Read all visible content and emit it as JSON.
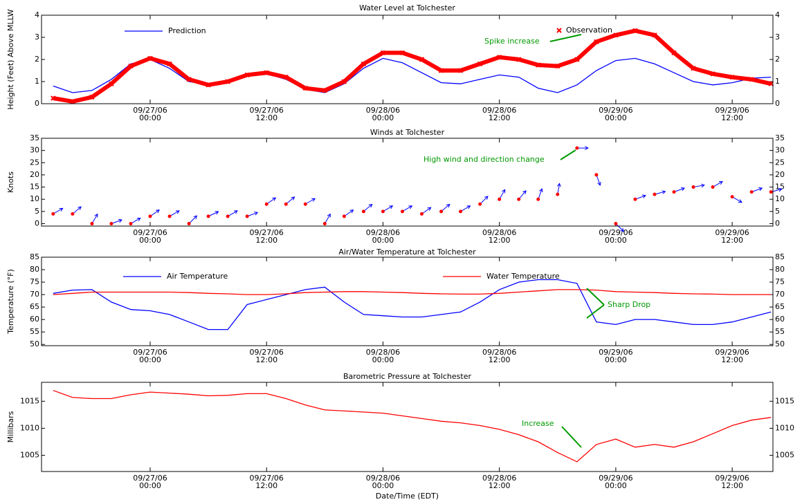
{
  "chart_data": [
    {
      "type": "line",
      "title": "Water Level at Tolchester",
      "ylabel": "Height (Feet) Above MLLW",
      "xlim": [
        -11.2,
        64.2
      ],
      "ylim": [
        0,
        4
      ],
      "yticks": [
        0,
        1,
        2,
        3,
        4
      ],
      "xticks": [
        {
          "value": 0,
          "label": [
            "09/27/06",
            "00:00"
          ]
        },
        {
          "value": 12,
          "label": [
            "09/27/06",
            "12:00"
          ]
        },
        {
          "value": 24,
          "label": [
            "09/28/06",
            "00:00"
          ]
        },
        {
          "value": 36,
          "label": [
            "09/28/06",
            "12:00"
          ]
        },
        {
          "value": 48,
          "label": [
            "09/29/06",
            "00:00"
          ]
        },
        {
          "value": 60,
          "label": [
            "09/29/06",
            "12:00"
          ]
        }
      ],
      "x": [
        -10,
        -8,
        -6,
        -4,
        -2,
        0,
        2,
        4,
        6,
        8,
        10,
        12,
        14,
        16,
        18,
        20,
        22,
        24,
        26,
        28,
        30,
        32,
        34,
        36,
        38,
        40,
        42,
        44,
        46,
        48,
        50,
        52,
        54,
        56,
        58,
        60,
        62,
        64
      ],
      "series": [
        {
          "name": "Prediction",
          "color": "#0000ff",
          "marker": "none",
          "values": [
            0.8,
            0.5,
            0.6,
            1.1,
            1.8,
            2.0,
            1.6,
            1.0,
            0.85,
            1.05,
            1.3,
            1.35,
            1.1,
            0.65,
            0.5,
            0.9,
            1.6,
            2.05,
            1.85,
            1.4,
            0.95,
            0.9,
            1.1,
            1.3,
            1.2,
            0.7,
            0.5,
            0.85,
            1.5,
            1.95,
            2.05,
            1.8,
            1.4,
            1.0,
            0.85,
            0.95,
            1.15,
            1.2
          ]
        },
        {
          "name": "Observation",
          "color": "#ff0000",
          "marker": "x",
          "values": [
            0.25,
            0.1,
            0.3,
            0.9,
            1.7,
            2.05,
            1.8,
            1.1,
            0.85,
            1.0,
            1.3,
            1.4,
            1.2,
            0.7,
            0.6,
            1.0,
            1.8,
            2.3,
            2.3,
            2.0,
            1.5,
            1.5,
            1.8,
            2.1,
            2.0,
            1.75,
            1.7,
            2.0,
            2.8,
            3.1,
            3.3,
            3.1,
            2.3,
            1.6,
            1.35,
            1.2,
            1.1,
            0.9
          ]
        }
      ],
      "annotations": [
        {
          "text": "Spike increase"
        }
      ]
    },
    {
      "type": "wind",
      "title": "Winds at Tolchester",
      "ylabel": "Knots",
      "xlim": [
        -11.2,
        64.2
      ],
      "ylim": [
        -1,
        35
      ],
      "yticks": [
        0,
        5,
        10,
        15,
        20,
        25,
        30,
        35
      ],
      "xticks": [
        {
          "value": 0,
          "label": [
            "09/27/06",
            "00:00"
          ]
        },
        {
          "value": 12,
          "label": [
            "09/27/06",
            "12:00"
          ]
        },
        {
          "value": 24,
          "label": [
            "09/28/06",
            "00:00"
          ]
        },
        {
          "value": 36,
          "label": [
            "09/28/06",
            "12:00"
          ]
        },
        {
          "value": 48,
          "label": [
            "09/29/06",
            "00:00"
          ]
        },
        {
          "value": 60,
          "label": [
            "09/29/06",
            "12:00"
          ]
        }
      ],
      "x": [
        -10,
        -8,
        -6,
        -4,
        -2,
        0,
        2,
        4,
        6,
        8,
        10,
        12,
        14,
        16,
        18,
        20,
        22,
        24,
        26,
        28,
        30,
        32,
        34,
        36,
        38,
        40,
        42,
        44,
        46,
        48,
        50,
        52,
        54,
        56,
        58,
        60,
        62,
        64
      ],
      "series": [
        {
          "color": "#ff0000",
          "arrow_color": "#0000ff",
          "values": [
            4,
            4,
            0,
            0,
            0,
            3,
            3,
            0,
            3,
            3,
            3,
            8,
            8,
            8,
            0,
            3,
            5,
            5,
            5,
            4,
            5,
            5,
            8,
            10,
            10,
            10,
            12,
            31,
            20,
            0,
            10,
            12,
            13,
            15,
            15,
            11,
            13,
            13
          ],
          "directions": [
            30,
            40,
            60,
            20,
            30,
            35,
            30,
            45,
            25,
            30,
            20,
            35,
            40,
            30,
            60,
            35,
            40,
            30,
            30,
            35,
            40,
            30,
            45,
            60,
            50,
            70,
            80,
            0,
            -70,
            -45,
            20,
            15,
            20,
            10,
            30,
            -30,
            20,
            15
          ]
        }
      ],
      "annotations": [
        {
          "text": "High wind and direction change"
        }
      ]
    },
    {
      "type": "line",
      "title": "Air/Water Temperature at Tolchester",
      "ylabel": "Temperature (°F)",
      "xlim": [
        -11.2,
        64.2
      ],
      "ylim": [
        49.5,
        85
      ],
      "yticks": [
        50,
        55,
        60,
        65,
        70,
        75,
        80,
        85
      ],
      "xticks": [
        {
          "value": 0,
          "label": [
            "09/27/06",
            "00:00"
          ]
        },
        {
          "value": 12,
          "label": [
            "09/27/06",
            "12:00"
          ]
        },
        {
          "value": 24,
          "label": [
            "09/28/06",
            "00:00"
          ]
        },
        {
          "value": 36,
          "label": [
            "09/28/06",
            "12:00"
          ]
        },
        {
          "value": 48,
          "label": [
            "09/29/06",
            "00:00"
          ]
        },
        {
          "value": 60,
          "label": [
            "09/29/06",
            "12:00"
          ]
        }
      ],
      "x": [
        -10,
        -8,
        -6,
        -4,
        -2,
        0,
        2,
        4,
        6,
        8,
        10,
        12,
        14,
        16,
        18,
        20,
        22,
        24,
        26,
        28,
        30,
        32,
        34,
        36,
        38,
        40,
        42,
        44,
        46,
        48,
        50,
        52,
        54,
        56,
        58,
        60,
        62,
        64
      ],
      "series": [
        {
          "name": "Air Temperature",
          "color": "#0000ff",
          "marker": "none",
          "values": [
            70.5,
            71.8,
            72,
            67,
            64,
            63.5,
            62,
            59,
            56,
            56,
            66,
            68,
            70,
            72,
            73,
            67,
            62,
            61.5,
            61,
            61,
            62,
            63,
            67,
            72,
            75,
            76,
            76,
            74.5,
            59,
            58,
            60,
            60,
            59,
            58,
            58,
            59,
            61,
            63
          ]
        },
        {
          "name": "Water Temperature",
          "color": "#ff0000",
          "marker": "none",
          "values": [
            70,
            70.5,
            71,
            71,
            71,
            71,
            71,
            70.8,
            70.5,
            70.3,
            70,
            70,
            70.3,
            70.8,
            71,
            71.2,
            71.2,
            71,
            70.8,
            70.5,
            70.3,
            70.2,
            70.2,
            70.5,
            71,
            71.5,
            72,
            72,
            71.8,
            71.2,
            71,
            70.8,
            70.5,
            70.3,
            70.2,
            70,
            70,
            70
          ]
        }
      ],
      "annotations": [
        {
          "text": "Sharp Drop"
        }
      ]
    },
    {
      "type": "line",
      "title": "Barometric Pressure at Tolchester",
      "ylabel": "Millibars",
      "xlabel": "Date/Time (EDT)",
      "xlim": [
        -11.2,
        64.2
      ],
      "ylim": [
        1002,
        1018.5
      ],
      "yticks": [
        1005,
        1010,
        1015
      ],
      "xticks": [
        {
          "value": 0,
          "label": [
            "09/27/06",
            "00:00"
          ]
        },
        {
          "value": 12,
          "label": [
            "09/27/06",
            "12:00"
          ]
        },
        {
          "value": 24,
          "label": [
            "09/28/06",
            "00:00"
          ]
        },
        {
          "value": 36,
          "label": [
            "09/28/06",
            "12:00"
          ]
        },
        {
          "value": 48,
          "label": [
            "09/29/06",
            "00:00"
          ]
        },
        {
          "value": 60,
          "label": [
            "09/29/06",
            "12:00"
          ]
        }
      ],
      "x": [
        -10,
        -8,
        -6,
        -4,
        -2,
        0,
        2,
        4,
        6,
        8,
        10,
        12,
        14,
        16,
        18,
        20,
        22,
        24,
        26,
        28,
        30,
        32,
        34,
        36,
        38,
        40,
        42,
        44,
        46,
        48,
        50,
        52,
        54,
        56,
        58,
        60,
        62,
        64
      ],
      "series": [
        {
          "color": "#ff0000",
          "marker": "none",
          "values": [
            1017,
            1015.7,
            1015.5,
            1015.5,
            1016.2,
            1016.7,
            1016.5,
            1016.3,
            1016,
            1016.1,
            1016.4,
            1016.4,
            1015.5,
            1014.3,
            1013.4,
            1013.2,
            1013,
            1012.8,
            1012.3,
            1011.8,
            1011.3,
            1011,
            1010.5,
            1009.8,
            1008.8,
            1007.5,
            1005.5,
            1003.8,
            1007,
            1008,
            1006.5,
            1007,
            1006.5,
            1007.5,
            1009,
            1010.5,
            1011.5,
            1012
          ]
        }
      ],
      "annotations": [
        {
          "text": "Increase"
        }
      ]
    }
  ]
}
